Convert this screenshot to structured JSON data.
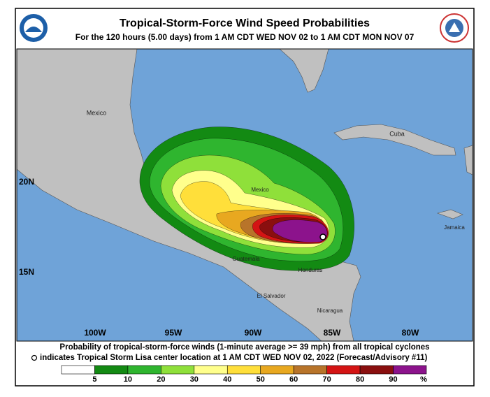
{
  "header": {
    "title": "Tropical-Storm-Force Wind Speed Probabilities",
    "subtitle": "For the 120 hours (5.00 days) from 1 AM CDT WED NOV 02 to 1 AM CDT MON NOV 07"
  },
  "map": {
    "places": [
      "Mexico",
      "Cuba",
      "Jamaica",
      "Mexico",
      "Guatemala",
      "Honduras",
      "El Salvador",
      "Nicaragua"
    ],
    "latitudes": [
      "20N",
      "15N"
    ],
    "longitudes": [
      "100W",
      "95W",
      "90W",
      "85W",
      "80W"
    ]
  },
  "footer": {
    "line1": "Probability of tropical-storm-force winds (1-minute average >= 39 mph) from all tropical cyclones",
    "line2": "indicates Tropical Storm Lisa center location at 1 AM CDT WED NOV 02, 2022 (Forecast/Advisory #11)"
  },
  "legend": {
    "colors": [
      "#ffffff",
      "#138a13",
      "#2fb52f",
      "#8fe03a",
      "#ffff8c",
      "#ffdf3a",
      "#e8a820",
      "#b8742a",
      "#d41414",
      "#8a0f0f",
      "#8c138c"
    ],
    "labels": [
      "5",
      "10",
      "20",
      "30",
      "40",
      "50",
      "60",
      "70",
      "80",
      "90",
      "%"
    ]
  }
}
